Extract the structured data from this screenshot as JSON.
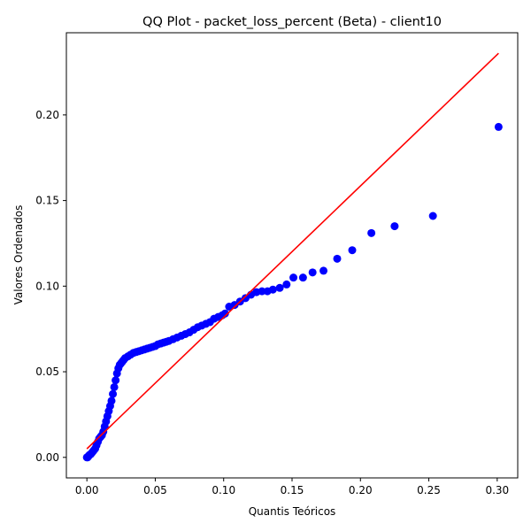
{
  "chart_data": {
    "type": "scatter",
    "title": "QQ Plot - packet_loss_percent (Beta) - client10",
    "xlabel": "Quantis Teóricos",
    "ylabel": "Valores Ordenados",
    "xlim": [
      -0.015,
      0.315
    ],
    "ylim": [
      -0.012,
      0.248
    ],
    "xticks": [
      0.0,
      0.05,
      0.1,
      0.15,
      0.2,
      0.25,
      0.3
    ],
    "xtick_labels": [
      "0.00",
      "0.05",
      "0.10",
      "0.15",
      "0.20",
      "0.25",
      "0.30"
    ],
    "yticks": [
      0.0,
      0.05,
      0.1,
      0.15,
      0.2
    ],
    "ytick_labels": [
      "0.00",
      "0.05",
      "0.10",
      "0.15",
      "0.20"
    ],
    "grid": false,
    "point_color": "#0000ff",
    "line_color": "#ff0000",
    "reference_line": {
      "x": [
        0.0,
        0.301
      ],
      "y": [
        0.005,
        0.236
      ]
    },
    "points": {
      "x": [
        0.0,
        0.0005,
        0.001,
        0.0015,
        0.002,
        0.003,
        0.004,
        0.005,
        0.006,
        0.007,
        0.008,
        0.009,
        0.01,
        0.011,
        0.012,
        0.013,
        0.014,
        0.015,
        0.016,
        0.017,
        0.018,
        0.019,
        0.02,
        0.021,
        0.022,
        0.023,
        0.024,
        0.025,
        0.026,
        0.027,
        0.028,
        0.03,
        0.032,
        0.034,
        0.036,
        0.038,
        0.04,
        0.042,
        0.044,
        0.046,
        0.048,
        0.05,
        0.052,
        0.054,
        0.056,
        0.058,
        0.06,
        0.063,
        0.066,
        0.069,
        0.072,
        0.075,
        0.078,
        0.081,
        0.084,
        0.087,
        0.09,
        0.093,
        0.096,
        0.099,
        0.101,
        0.104,
        0.108,
        0.112,
        0.116,
        0.12,
        0.124,
        0.128,
        0.132,
        0.136,
        0.141,
        0.146,
        0.151,
        0.158,
        0.165,
        0.173,
        0.183,
        0.194,
        0.208,
        0.225,
        0.253,
        0.301
      ],
      "y": [
        0.0,
        0.0,
        0.0005,
        0.001,
        0.0015,
        0.002,
        0.003,
        0.004,
        0.005,
        0.007,
        0.009,
        0.011,
        0.012,
        0.013,
        0.015,
        0.018,
        0.021,
        0.024,
        0.027,
        0.03,
        0.033,
        0.037,
        0.041,
        0.045,
        0.049,
        0.052,
        0.054,
        0.055,
        0.056,
        0.057,
        0.058,
        0.059,
        0.06,
        0.061,
        0.0615,
        0.062,
        0.0625,
        0.063,
        0.0635,
        0.064,
        0.0645,
        0.065,
        0.066,
        0.0665,
        0.067,
        0.0675,
        0.068,
        0.069,
        0.07,
        0.071,
        0.072,
        0.073,
        0.0745,
        0.076,
        0.077,
        0.078,
        0.079,
        0.081,
        0.082,
        0.083,
        0.084,
        0.088,
        0.089,
        0.091,
        0.093,
        0.095,
        0.0965,
        0.097,
        0.097,
        0.098,
        0.099,
        0.101,
        0.105,
        0.105,
        0.108,
        0.109,
        0.116,
        0.121,
        0.131,
        0.135,
        0.141,
        0.193
      ]
    }
  }
}
